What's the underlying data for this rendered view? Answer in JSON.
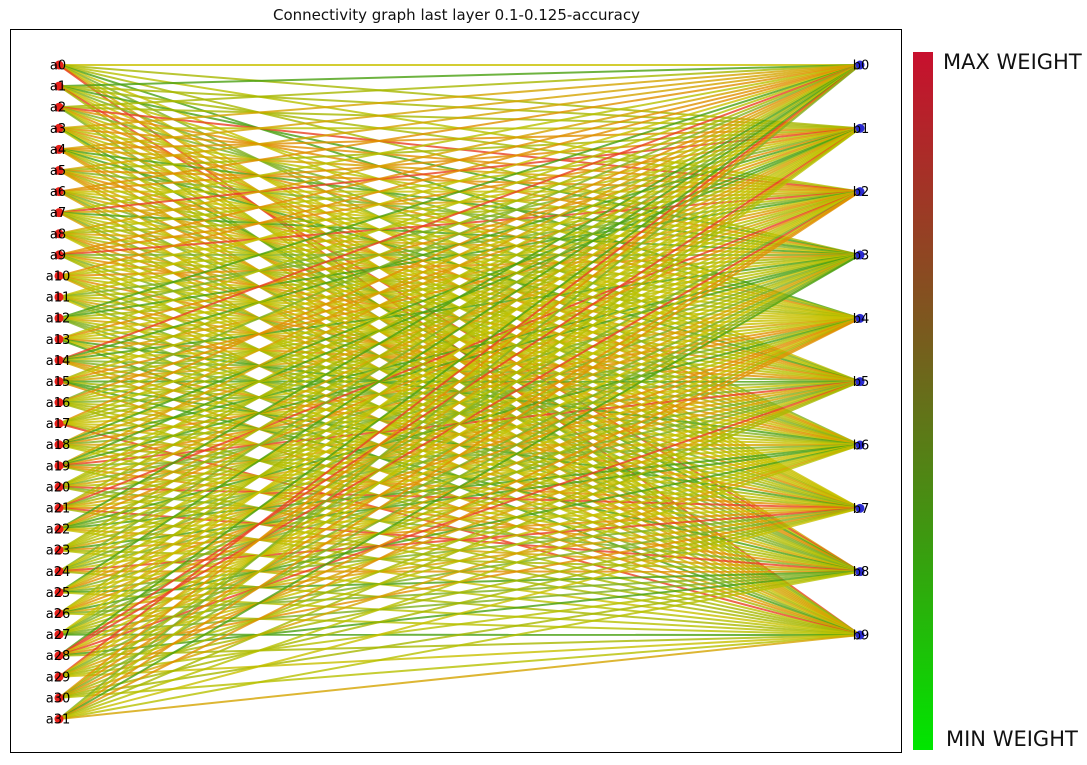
{
  "title": "Connectivity graph last layer 0.1-0.125-accuracy",
  "colorbar": {
    "max_label": "MAX WEIGHT",
    "min_label": "MIN WEIGHT",
    "max_color": "#c8102e",
    "mid_color": "#7a5a1e",
    "min_color": "#00e600"
  },
  "left_nodes": [
    "a0",
    "a1",
    "a2",
    "a3",
    "a4",
    "a5",
    "a6",
    "a7",
    "a8",
    "a9",
    "a10",
    "a11",
    "a12",
    "a13",
    "a14",
    "a15",
    "a16",
    "a17",
    "a18",
    "a19",
    "a20",
    "a21",
    "a22",
    "a23",
    "a24",
    "a25",
    "a26",
    "a27",
    "a28",
    "a29",
    "a30",
    "a31"
  ],
  "right_nodes": [
    "b0",
    "b1",
    "b2",
    "b3",
    "b4",
    "b5",
    "b6",
    "b7",
    "b8",
    "b9"
  ],
  "left_node_color": "#e8201a",
  "right_node_color": "#2a2ad0",
  "edge_palette": [
    "#c8c000",
    "#b8c000",
    "#a8b800",
    "#d4a400",
    "#e09000",
    "#80b020",
    "#4aa010",
    "#e84020"
  ]
}
